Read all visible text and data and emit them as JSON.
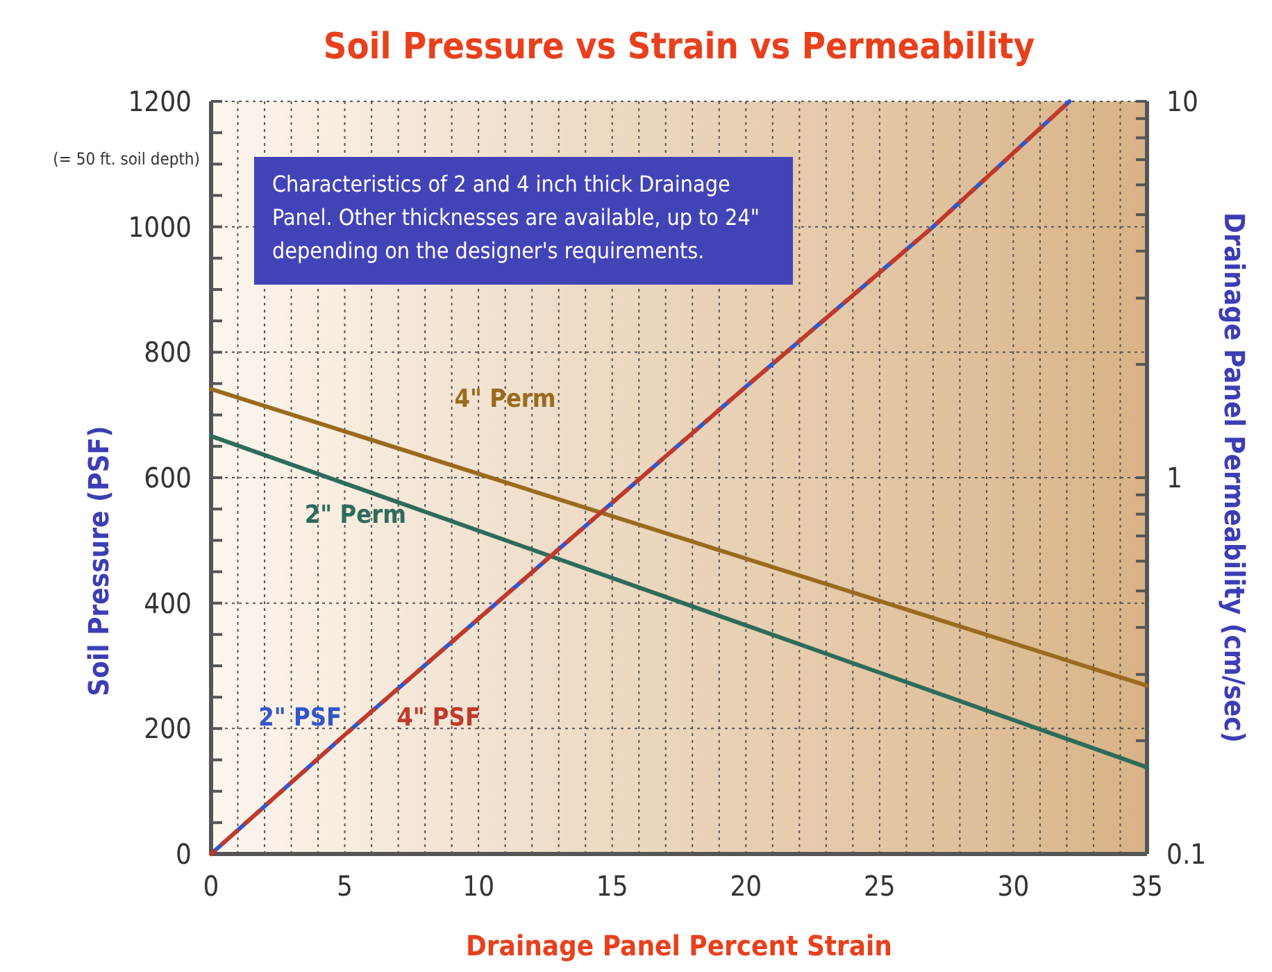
{
  "chart_data": {
    "type": "line",
    "title": "Soil Pressure  vs  Strain  vs  Permeability",
    "xlabel": "Drainage Panel Percent Strain",
    "ylabel": "Soil Pressure (PSF)",
    "y2label": "Drainage Panel Permeability (cm/sec)",
    "annotations": [
      "(= 50 ft. soil depth)",
      "Characteristics of 2 and 4 inch thick Drainage Panel. Other thicknesses are available, up to 24\" depending on the designer's requirements."
    ],
    "xlim": [
      0,
      35
    ],
    "xticks": [
      0,
      {
        "value": 1,
        "label": null
      },
      {
        "value": 2,
        "label": null
      },
      {
        "value": 3,
        "label": null
      },
      {
        "value": 4,
        "label": null
      },
      5,
      {
        "value": 6,
        "label": null
      },
      {
        "value": 7,
        "label": null
      },
      {
        "value": 8,
        "label": null
      },
      {
        "value": 9,
        "label": null
      },
      10,
      {
        "value": 11,
        "label": null
      },
      {
        "value": 12,
        "label": null
      },
      {
        "value": 13,
        "label": null
      },
      {
        "value": 14,
        "label": null
      },
      15,
      {
        "value": 16,
        "label": null
      },
      {
        "value": 17,
        "label": null
      },
      {
        "value": 18,
        "label": null
      },
      {
        "value": 19,
        "label": null
      },
      20,
      {
        "value": 21,
        "label": null
      },
      {
        "value": 22,
        "label": null
      },
      {
        "value": 23,
        "label": null
      },
      {
        "value": 24,
        "label": null
      },
      25,
      {
        "value": 26,
        "label": null
      },
      {
        "value": 27,
        "label": null
      },
      {
        "value": 28,
        "label": null
      },
      {
        "value": 29,
        "label": null
      },
      30,
      {
        "value": 31,
        "label": null
      },
      {
        "value": 32,
        "label": null
      },
      {
        "value": 33,
        "label": null
      },
      {
        "value": 34,
        "label": null
      },
      35
    ],
    "ylim": [
      0,
      1200
    ],
    "yticks": [
      0,
      {
        "value": 50,
        "label": null
      },
      {
        "value": 100,
        "label": null
      },
      {
        "value": 150,
        "label": null
      },
      200,
      {
        "value": 250,
        "label": null
      },
      {
        "value": 300,
        "label": null
      },
      {
        "value": 350,
        "label": null
      },
      400,
      {
        "value": 450,
        "label": null
      },
      {
        "value": 500,
        "label": null
      },
      {
        "value": 550,
        "label": null
      },
      600,
      {
        "value": 650,
        "label": null
      },
      {
        "value": 700,
        "label": null
      },
      {
        "value": 750,
        "label": null
      },
      800,
      {
        "value": 850,
        "label": null
      },
      {
        "value": 900,
        "label": null
      },
      {
        "value": 950,
        "label": null
      },
      1000,
      {
        "value": 1050,
        "label": null
      },
      {
        "value": 1100,
        "label": null
      },
      {
        "value": 1150,
        "label": null
      },
      1200
    ],
    "log": "y2",
    "y2lim": [
      0.1,
      10
    ],
    "y2ticks": [
      0.1,
      {
        "value": 0.2,
        "label": null
      },
      {
        "value": 0.3,
        "label": null
      },
      {
        "value": 0.4,
        "label": null
      },
      {
        "value": 0.5,
        "label": null
      },
      {
        "value": 0.6,
        "label": null
      },
      {
        "value": 0.7,
        "label": null
      },
      {
        "value": 0.8,
        "label": null
      },
      {
        "value": 0.9,
        "label": null
      },
      1,
      {
        "value": 2,
        "label": null
      },
      {
        "value": 3,
        "label": null
      },
      {
        "value": 4,
        "label": null
      },
      {
        "value": 5,
        "label": null
      },
      {
        "value": 6,
        "label": null
      },
      {
        "value": 7,
        "label": null
      },
      {
        "value": 8,
        "label": null
      },
      {
        "value": 9,
        "label": null
      },
      10
    ],
    "grid": true,
    "marker": "none",
    "series": [
      {
        "name": "4\" Perm",
        "color": "#9a6a1e",
        "axis": "y2",
        "x": [
          0,
          35
        ],
        "values": [
          1.72,
          0.28
        ]
      },
      {
        "name": "2\" Perm",
        "color": "#2e6b5a",
        "axis": "y2",
        "x": [
          0,
          35
        ],
        "values": [
          1.29,
          0.17
        ]
      },
      {
        "name": "2\" PSF",
        "color": "#3355cc",
        "line_style": "dashed",
        "x": [
          0,
          5,
          10,
          15,
          20,
          27,
          32.1
        ],
        "values": [
          0,
          190,
          375,
          560,
          745,
          1000,
          1200
        ]
      },
      {
        "name": "4\" PSF",
        "color": "#c0392b",
        "line_style": "dashed",
        "x": [
          0,
          5,
          10,
          15,
          20,
          27,
          32.1
        ],
        "values": [
          0,
          190,
          375,
          560,
          745,
          1000,
          1200
        ]
      }
    ]
  }
}
